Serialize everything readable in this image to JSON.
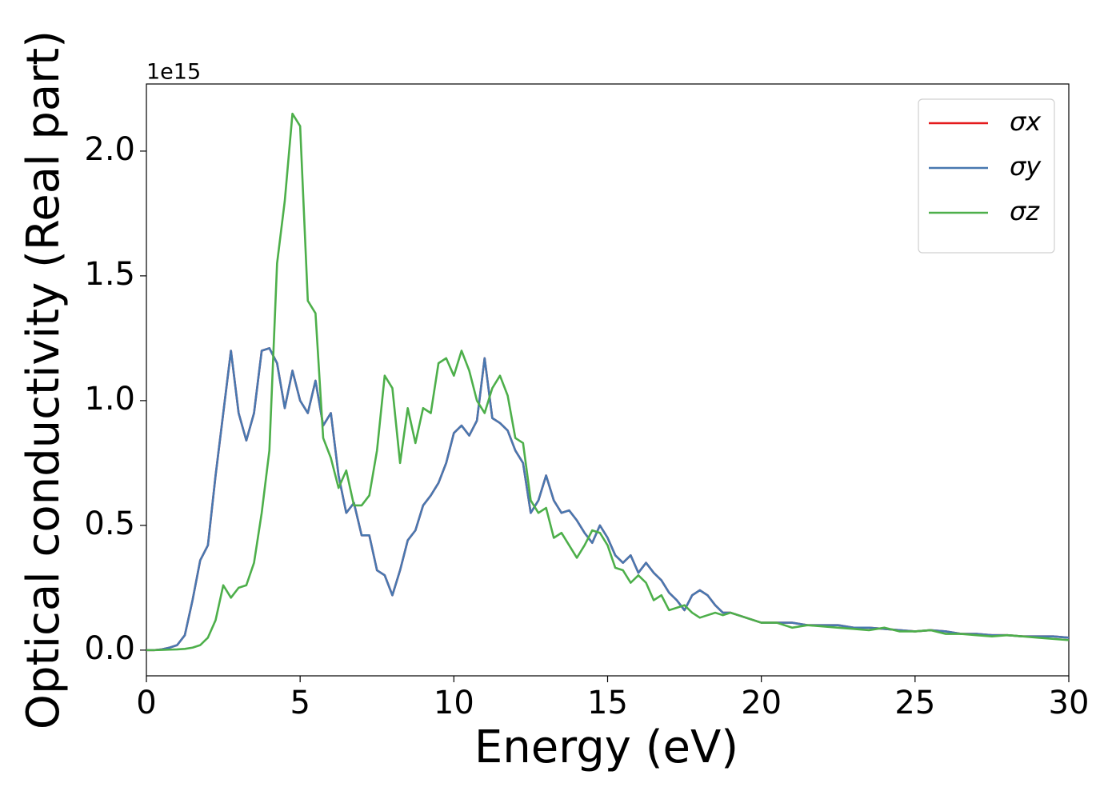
{
  "chart_data": {
    "type": "line",
    "xlabel": "Energy (eV)",
    "ylabel": "Optical conductivity (Real part)",
    "offset_text": "1e15",
    "x": [
      0,
      0.25,
      0.5,
      0.75,
      1,
      1.25,
      1.5,
      1.75,
      2,
      2.25,
      2.5,
      2.75,
      3,
      3.25,
      3.5,
      3.75,
      4,
      4.25,
      4.5,
      4.75,
      5,
      5.25,
      5.5,
      5.75,
      6,
      6.25,
      6.5,
      6.75,
      7,
      7.25,
      7.5,
      7.75,
      8,
      8.25,
      8.5,
      8.75,
      9,
      9.25,
      9.5,
      9.75,
      10,
      10.25,
      10.5,
      10.75,
      11,
      11.25,
      11.5,
      11.75,
      12,
      12.25,
      12.5,
      12.75,
      13,
      13.25,
      13.5,
      13.75,
      14,
      14.25,
      14.5,
      14.75,
      15,
      15.25,
      15.5,
      15.75,
      16,
      16.25,
      16.5,
      16.75,
      17,
      17.25,
      17.5,
      17.75,
      18,
      18.25,
      18.5,
      18.75,
      19,
      19.25,
      19.5,
      19.75,
      20,
      20.5,
      21,
      21.5,
      22,
      22.5,
      23,
      23.5,
      24,
      24.5,
      25,
      25.5,
      26,
      26.5,
      27,
      27.5,
      28,
      28.5,
      29,
      29.5,
      30
    ],
    "series": [
      {
        "name": "σx",
        "color": "#e41a1c",
        "values": [
          0,
          0,
          0.003,
          0.01,
          0.02,
          0.06,
          0.2,
          0.36,
          0.42,
          0.7,
          0.95,
          1.2,
          0.95,
          0.84,
          0.95,
          1.2,
          1.21,
          1.15,
          0.97,
          1.12,
          1.0,
          0.95,
          1.08,
          0.9,
          0.95,
          0.7,
          0.55,
          0.59,
          0.46,
          0.46,
          0.32,
          0.3,
          0.22,
          0.32,
          0.44,
          0.48,
          0.58,
          0.62,
          0.67,
          0.75,
          0.87,
          0.9,
          0.86,
          0.92,
          1.17,
          0.93,
          0.91,
          0.88,
          0.8,
          0.75,
          0.55,
          0.6,
          0.7,
          0.6,
          0.55,
          0.56,
          0.52,
          0.47,
          0.43,
          0.5,
          0.45,
          0.38,
          0.35,
          0.38,
          0.31,
          0.35,
          0.31,
          0.28,
          0.23,
          0.2,
          0.16,
          0.22,
          0.24,
          0.22,
          0.18,
          0.15,
          0.15,
          0.14,
          0.13,
          0.12,
          0.11,
          0.11,
          0.11,
          0.1,
          0.1,
          0.1,
          0.09,
          0.09,
          0.085,
          0.08,
          0.075,
          0.08,
          0.075,
          0.065,
          0.065,
          0.06,
          0.06,
          0.055,
          0.055,
          0.055,
          0.05
        ]
      },
      {
        "name": "σy",
        "color": "#4878b0",
        "values": [
          0,
          0,
          0.003,
          0.01,
          0.02,
          0.06,
          0.2,
          0.36,
          0.42,
          0.7,
          0.95,
          1.2,
          0.95,
          0.84,
          0.95,
          1.2,
          1.21,
          1.15,
          0.97,
          1.12,
          1.0,
          0.95,
          1.08,
          0.9,
          0.95,
          0.7,
          0.55,
          0.59,
          0.46,
          0.46,
          0.32,
          0.3,
          0.22,
          0.32,
          0.44,
          0.48,
          0.58,
          0.62,
          0.67,
          0.75,
          0.87,
          0.9,
          0.86,
          0.92,
          1.17,
          0.93,
          0.91,
          0.88,
          0.8,
          0.75,
          0.55,
          0.6,
          0.7,
          0.6,
          0.55,
          0.56,
          0.52,
          0.47,
          0.43,
          0.5,
          0.45,
          0.38,
          0.35,
          0.38,
          0.31,
          0.35,
          0.31,
          0.28,
          0.23,
          0.2,
          0.16,
          0.22,
          0.24,
          0.22,
          0.18,
          0.15,
          0.15,
          0.14,
          0.13,
          0.12,
          0.11,
          0.11,
          0.11,
          0.1,
          0.1,
          0.1,
          0.09,
          0.09,
          0.085,
          0.08,
          0.075,
          0.08,
          0.075,
          0.065,
          0.065,
          0.06,
          0.06,
          0.055,
          0.055,
          0.055,
          0.05
        ]
      },
      {
        "name": "σz",
        "color": "#4daf4a",
        "values": [
          0,
          0,
          0.001,
          0.002,
          0.003,
          0.005,
          0.01,
          0.02,
          0.05,
          0.12,
          0.26,
          0.21,
          0.25,
          0.26,
          0.35,
          0.55,
          0.8,
          1.55,
          1.8,
          2.15,
          2.1,
          1.4,
          1.35,
          0.85,
          0.77,
          0.65,
          0.72,
          0.58,
          0.58,
          0.62,
          0.8,
          1.1,
          1.05,
          0.75,
          0.97,
          0.83,
          0.97,
          0.95,
          1.15,
          1.17,
          1.1,
          1.2,
          1.12,
          1.0,
          0.95,
          1.05,
          1.1,
          1.02,
          0.85,
          0.83,
          0.6,
          0.55,
          0.57,
          0.45,
          0.47,
          0.42,
          0.37,
          0.42,
          0.48,
          0.47,
          0.42,
          0.33,
          0.32,
          0.27,
          0.3,
          0.27,
          0.2,
          0.22,
          0.16,
          0.17,
          0.18,
          0.15,
          0.13,
          0.14,
          0.15,
          0.14,
          0.15,
          0.14,
          0.13,
          0.12,
          0.11,
          0.11,
          0.09,
          0.1,
          0.095,
          0.09,
          0.085,
          0.08,
          0.09,
          0.075,
          0.075,
          0.08,
          0.065,
          0.065,
          0.06,
          0.055,
          0.06,
          0.055,
          0.05,
          0.045,
          0.04
        ]
      }
    ],
    "xlim": [
      0,
      30
    ],
    "xticks": [
      0,
      5,
      10,
      15,
      20,
      25,
      30
    ],
    "ylim": [
      -0.103,
      2.269
    ],
    "yticks": [
      {
        "value": 0,
        "label": "0.0"
      },
      {
        "value": 0.5,
        "label": "0.5"
      },
      {
        "value": 1,
        "label": "1.0"
      },
      {
        "value": 1.5,
        "label": "1.5"
      },
      {
        "value": 2,
        "label": "2.0"
      }
    ],
    "grid": false,
    "legend": "upper right"
  }
}
